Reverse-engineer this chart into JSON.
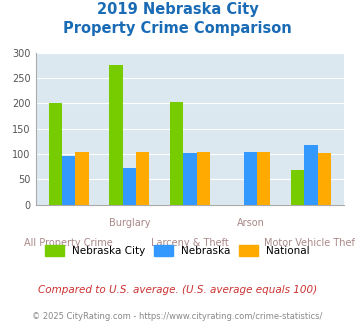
{
  "title_line1": "2019 Nebraska City",
  "title_line2": "Property Crime Comparison",
  "categories": [
    "All Property Crime",
    "Burglary",
    "Larceny & Theft",
    "Arson",
    "Motor Vehicle Theft"
  ],
  "series": {
    "Nebraska City": [
      200,
      275,
      202,
      0,
      68
    ],
    "Nebraska": [
      97,
      72,
      102,
      103,
      118
    ],
    "National": [
      103,
      103,
      103,
      103,
      102
    ]
  },
  "colors": {
    "Nebraska City": "#77cc00",
    "Nebraska": "#3399ff",
    "National": "#ffaa00"
  },
  "ylim": [
    0,
    300
  ],
  "yticks": [
    0,
    50,
    100,
    150,
    200,
    250,
    300
  ],
  "plot_bg_color": "#dce8f0",
  "title_color": "#1a6bb5",
  "grid_color": "#ffffff",
  "xlabel_color": "#aa8888",
  "legend_labels": [
    "Nebraska City",
    "Nebraska",
    "National"
  ],
  "top_xlabels": [
    null,
    "Burglary",
    null,
    "Arson",
    null
  ],
  "bottom_xlabels": [
    "All Property Crime",
    null,
    "Larceny & Theft",
    null,
    "Motor Vehicle Theft"
  ],
  "footnote1": "Compared to U.S. average. (U.S. average equals 100)",
  "footnote2": "© 2025 CityRating.com - https://www.cityrating.com/crime-statistics/",
  "footnote1_color": "#cc3333",
  "footnote2_color": "#888888",
  "bar_width": 0.22
}
